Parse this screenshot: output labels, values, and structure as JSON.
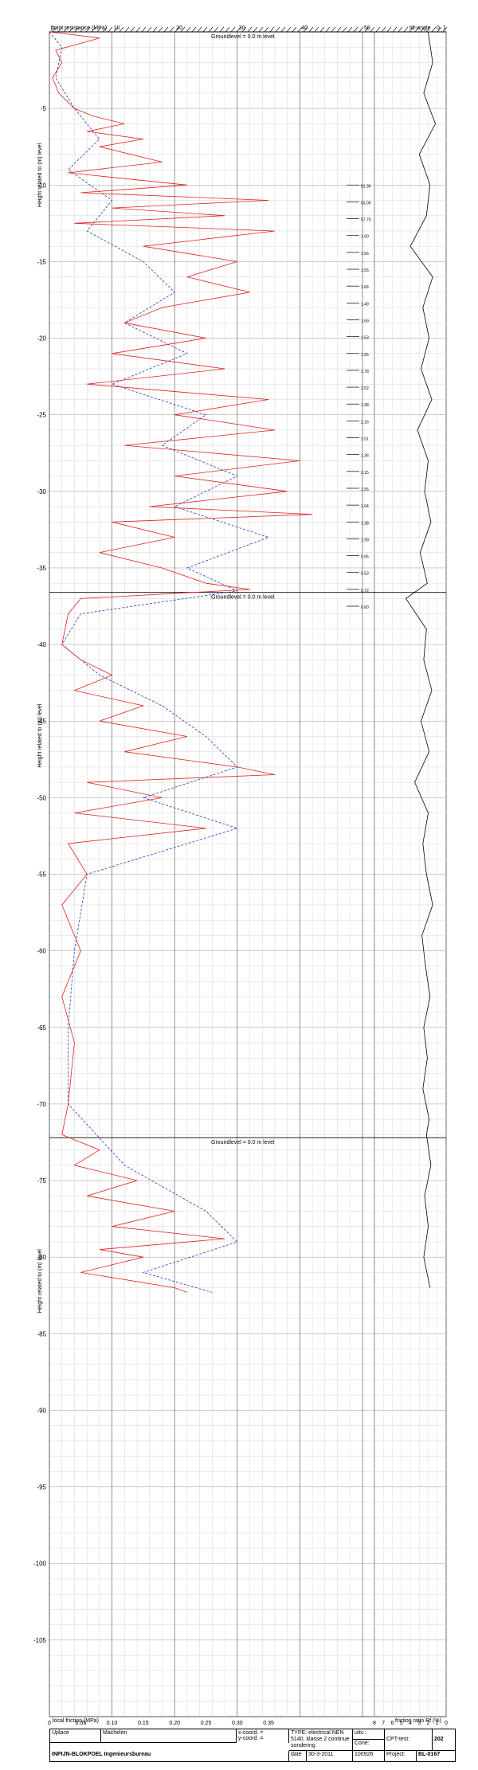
{
  "header": {
    "cone_resistance_label": "point resistance (MPa)",
    "friction_label": "local friction (MPa)",
    "angle_label": "tilt-angle",
    "ratio_label": "friction ratio Rf (%)",
    "groundlevel_text": "Groundlevel = 0.0   m     level",
    "yaxis_label": "Height related to     (m)      level"
  },
  "axes": {
    "depth_ticks": [
      -5,
      -10,
      -15,
      -20,
      -25,
      -30,
      -35,
      -40,
      -45,
      -50,
      -55,
      -60,
      -65,
      -70,
      -75,
      -80,
      -85,
      -90,
      -95,
      -100,
      -105
    ],
    "qc_ticks": [
      "0",
      "10",
      "20",
      "30",
      "40",
      "50"
    ],
    "fs_ticks": [
      "0",
      "0.05",
      "0.10",
      "0.15",
      "0.20",
      "0.25",
      "0.30",
      "0.35"
    ],
    "rf_ticks": [
      "8",
      "7",
      "6",
      "5",
      "4",
      "3",
      "2",
      "1",
      "0"
    ],
    "angle_ticks": [
      "0",
      "1"
    ],
    "groundlevel_depths": [
      0,
      -36.6,
      -72.2
    ]
  },
  "chart_data": {
    "type": "line",
    "title": "",
    "xlabel": "point resistance (MPa)",
    "ylabel": "Height related to (m) level",
    "xlim": [
      0,
      50
    ],
    "ylim": [
      -110,
      0
    ],
    "series": [
      {
        "name": "point resistance (MPa)",
        "color": "#e0211b",
        "points": [
          [
            0,
            0
          ],
          [
            8,
            -0.4
          ],
          [
            1,
            -1.2
          ],
          [
            2,
            -2
          ],
          [
            0.5,
            -3
          ],
          [
            1.5,
            -4
          ],
          [
            4,
            -5
          ],
          [
            7,
            -5.5
          ],
          [
            12,
            -6
          ],
          [
            6,
            -6.5
          ],
          [
            15,
            -7
          ],
          [
            8,
            -7.5
          ],
          [
            18,
            -8.5
          ],
          [
            3,
            -9.2
          ],
          [
            22,
            -10
          ],
          [
            5,
            -10.5
          ],
          [
            35,
            -11
          ],
          [
            10,
            -11.5
          ],
          [
            28,
            -12
          ],
          [
            4,
            -12.5
          ],
          [
            36,
            -13
          ],
          [
            15,
            -14
          ],
          [
            30,
            -15
          ],
          [
            22,
            -16
          ],
          [
            32,
            -17
          ],
          [
            18,
            -18
          ],
          [
            12,
            -19
          ],
          [
            25,
            -20
          ],
          [
            10,
            -21
          ],
          [
            28,
            -22
          ],
          [
            6,
            -23
          ],
          [
            35,
            -24
          ],
          [
            20,
            -25
          ],
          [
            36,
            -26
          ],
          [
            12,
            -27
          ],
          [
            40,
            -28
          ],
          [
            20,
            -29
          ],
          [
            38,
            -30
          ],
          [
            16,
            -31
          ],
          [
            42,
            -31.5
          ],
          [
            10,
            -32
          ],
          [
            20,
            -33
          ],
          [
            8,
            -34
          ],
          [
            18,
            -35
          ],
          [
            25,
            -36
          ],
          [
            32,
            -36.4
          ],
          [
            5,
            -37
          ],
          [
            3,
            -38
          ],
          [
            2,
            -40
          ],
          [
            5,
            -41
          ],
          [
            10,
            -42
          ],
          [
            4,
            -43
          ],
          [
            15,
            -44
          ],
          [
            8,
            -45
          ],
          [
            22,
            -46
          ],
          [
            12,
            -47
          ],
          [
            30,
            -48
          ],
          [
            36,
            -48.5
          ],
          [
            6,
            -49
          ],
          [
            18,
            -50
          ],
          [
            4,
            -51
          ],
          [
            25,
            -52
          ],
          [
            3,
            -53
          ],
          [
            6,
            -55
          ],
          [
            2,
            -57
          ],
          [
            5,
            -60
          ],
          [
            2,
            -63
          ],
          [
            4,
            -66
          ],
          [
            3,
            -70
          ],
          [
            2,
            -72
          ],
          [
            8,
            -73
          ],
          [
            4,
            -74
          ],
          [
            14,
            -75
          ],
          [
            6,
            -76
          ],
          [
            20,
            -77
          ],
          [
            10,
            -78
          ],
          [
            28,
            -78.8
          ],
          [
            8,
            -79.5
          ],
          [
            15,
            -80
          ],
          [
            5,
            -81
          ],
          [
            20,
            -82
          ],
          [
            22,
            -82.3
          ]
        ]
      },
      {
        "name": "local friction (MPa)",
        "color": "#2c36c9",
        "points": [
          [
            0,
            0
          ],
          [
            0.02,
            -1
          ],
          [
            0.01,
            -3
          ],
          [
            0.04,
            -5
          ],
          [
            0.08,
            -7
          ],
          [
            0.03,
            -9
          ],
          [
            0.1,
            -11
          ],
          [
            0.06,
            -13
          ],
          [
            0.15,
            -15
          ],
          [
            0.2,
            -17
          ],
          [
            0.12,
            -19
          ],
          [
            0.22,
            -21
          ],
          [
            0.1,
            -23
          ],
          [
            0.25,
            -25
          ],
          [
            0.18,
            -27
          ],
          [
            0.3,
            -29
          ],
          [
            0.2,
            -31
          ],
          [
            0.35,
            -33
          ],
          [
            0.22,
            -35
          ],
          [
            0.3,
            -36.5
          ],
          [
            0.05,
            -38
          ],
          [
            0.02,
            -40
          ],
          [
            0.08,
            -42
          ],
          [
            0.18,
            -44
          ],
          [
            0.25,
            -46
          ],
          [
            0.3,
            -48
          ],
          [
            0.15,
            -50
          ],
          [
            0.3,
            -52
          ],
          [
            0.06,
            -55
          ],
          [
            0.04,
            -60
          ],
          [
            0.03,
            -65
          ],
          [
            0.03,
            -70
          ],
          [
            0.12,
            -74
          ],
          [
            0.25,
            -77
          ],
          [
            0.3,
            -79
          ],
          [
            0.15,
            -81
          ],
          [
            0.26,
            -82.3
          ]
        ]
      },
      {
        "name": "friction ratio Rf (%)",
        "color": "#000000",
        "points": [
          [
            2,
            0
          ],
          [
            1.5,
            -2
          ],
          [
            2.5,
            -4
          ],
          [
            1.2,
            -6
          ],
          [
            3,
            -8
          ],
          [
            1.8,
            -10
          ],
          [
            2.2,
            -12
          ],
          [
            4,
            -14
          ],
          [
            1.5,
            -16
          ],
          [
            2.6,
            -18
          ],
          [
            1.9,
            -20
          ],
          [
            2.8,
            -22
          ],
          [
            1.6,
            -24
          ],
          [
            3.2,
            -26
          ],
          [
            2,
            -28
          ],
          [
            2.4,
            -30
          ],
          [
            1.7,
            -32
          ],
          [
            2.9,
            -34
          ],
          [
            2.1,
            -36
          ],
          [
            4.5,
            -37
          ],
          [
            2.2,
            -39
          ],
          [
            2.5,
            -41
          ],
          [
            1.6,
            -43
          ],
          [
            2.8,
            -45
          ],
          [
            1.9,
            -47
          ],
          [
            3.5,
            -49
          ],
          [
            2,
            -51
          ],
          [
            2.6,
            -53
          ],
          [
            2.2,
            -55
          ],
          [
            1.5,
            -57
          ],
          [
            2.7,
            -59
          ],
          [
            2.3,
            -61
          ],
          [
            1.8,
            -63
          ],
          [
            2.5,
            -65
          ],
          [
            2.1,
            -67
          ],
          [
            2.6,
            -69
          ],
          [
            1.9,
            -71
          ],
          [
            2.2,
            -72
          ],
          [
            1.7,
            -74
          ],
          [
            2.4,
            -76
          ],
          [
            2,
            -78
          ],
          [
            2.5,
            -80
          ],
          [
            1.8,
            -82
          ]
        ]
      }
    ],
    "annotations": [
      "81.36",
      "63.09",
      "57.70",
      "1.90",
      "1.56",
      "1.55",
      "1.66",
      "1.49",
      "1.69",
      "1.53",
      "1.55",
      "1.78",
      "1.52",
      "1.38",
      "2.16",
      "1.51",
      "1.36",
      "2.15",
      "1.55",
      "1.64",
      "1.38",
      "1.99",
      "0.95",
      "0.53",
      "0.72",
      "0.60"
    ]
  },
  "footer": {
    "location_label": "Uplace",
    "location_value": "Machelen",
    "xcoord": "x-coord. =",
    "ycoord": "y-coord. =",
    "type_text": "TYPE: electrical NEN 5140, klasse 2 continue sondering",
    "uitv_label": "uitv.:",
    "cone_label": "Cone:",
    "cpt_label": "CPT-test:",
    "cpt_value": "202",
    "company": "INPIJN-BLOKPOEL Ingenieursbureau",
    "date_label": "date",
    "date_value": "30-3-2011",
    "cone_number": "100926",
    "project_label": "Project:",
    "project_value": "BL-0167"
  }
}
